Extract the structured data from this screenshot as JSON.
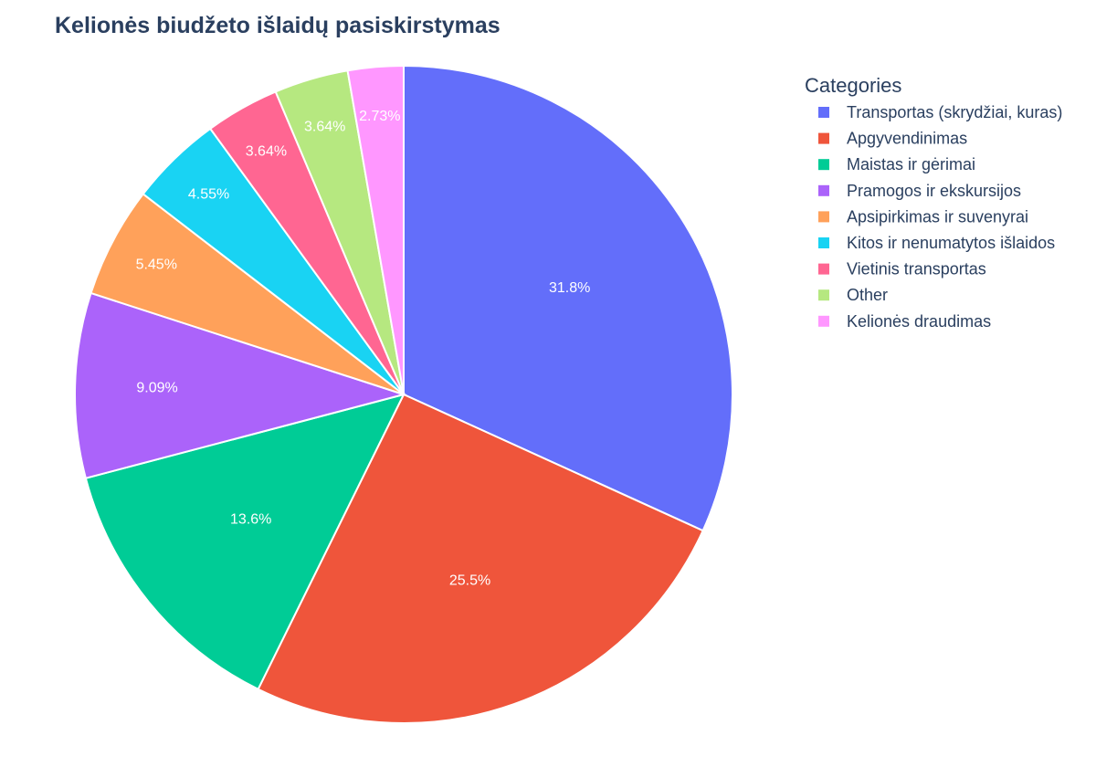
{
  "chart_data": {
    "type": "pie",
    "title": "Kelionės biudžeto išlaidų pasiskirstymas",
    "legend_title": "Categories",
    "legend_placement": "right",
    "direction": "clockwise",
    "start_angle_deg": 90,
    "slices": [
      {
        "label": "Transportas (skrydžiai, kuras)",
        "value": 31.8,
        "text": "31.8%",
        "color": "#636efa"
      },
      {
        "label": "Apgyvendinimas",
        "value": 25.5,
        "text": "25.5%",
        "color": "#EF553B"
      },
      {
        "label": "Maistas ir gėrimai",
        "value": 13.6,
        "text": "13.6%",
        "color": "#00cc96"
      },
      {
        "label": "Pramogos ir ekskursijos",
        "value": 9.09,
        "text": "9.09%",
        "color": "#ab63fa"
      },
      {
        "label": "Apsipirkimas ir suvenyrai",
        "value": 5.45,
        "text": "5.45%",
        "color": "#FFA15A"
      },
      {
        "label": "Kitos ir nenumatytos išlaidos",
        "value": 4.55,
        "text": "4.55%",
        "color": "#19d3f3"
      },
      {
        "label": "Vietinis transportas",
        "value": 3.64,
        "text": "3.64%",
        "color": "#FF6692"
      },
      {
        "label": "Other",
        "value": 3.64,
        "text": "3.64%",
        "color": "#B6E880"
      },
      {
        "label": "Kelionės draudimas",
        "value": 2.73,
        "text": "2.73%",
        "color": "#FF97FF"
      }
    ]
  }
}
